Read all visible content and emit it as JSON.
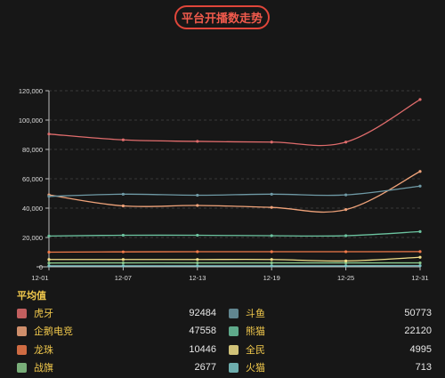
{
  "header": {
    "title": "平台开播数走势"
  },
  "legend_title": "平均值",
  "chart_data": {
    "type": "line",
    "x": [
      "12-01",
      "12-07",
      "12-13",
      "12-19",
      "12-25",
      "12-31"
    ],
    "ylim": [
      0,
      120000
    ],
    "yticks": [
      "0",
      "20,000",
      "40,000",
      "60,000",
      "80,000",
      "100,000",
      "120,000"
    ],
    "grid": true,
    "series": [
      {
        "name": "虎牙",
        "avg": "92484",
        "color": "#e06c6c",
        "values": [
          90500,
          86500,
          85500,
          85000,
          85000,
          114000
        ]
      },
      {
        "name": "斗鱼",
        "avg": "50773",
        "color": "#6f9aa6",
        "values": [
          48000,
          49500,
          48800,
          49500,
          49000,
          55000
        ]
      },
      {
        "name": "企鹅电竞",
        "avg": "47558",
        "color": "#f0a37a",
        "values": [
          49000,
          41500,
          41800,
          40500,
          39000,
          65000
        ]
      },
      {
        "name": "熊猫",
        "avg": "22120",
        "color": "#6cc4a0",
        "values": [
          21000,
          21500,
          21500,
          21200,
          21200,
          24000
        ]
      },
      {
        "name": "龙珠",
        "avg": "10446",
        "color": "#f07a4a",
        "values": [
          10000,
          10200,
          10300,
          10300,
          10300,
          10400
        ]
      },
      {
        "name": "全民",
        "avg": "4995",
        "color": "#f2e08a",
        "values": [
          5000,
          5000,
          5000,
          5000,
          4000,
          6500
        ]
      },
      {
        "name": "战旗",
        "avg": "2677",
        "color": "#8bc98b",
        "values": [
          2600,
          2700,
          2700,
          2700,
          2700,
          2700
        ]
      },
      {
        "name": "火猫",
        "avg": "713",
        "color": "#7ec9c9",
        "values": [
          700,
          700,
          700,
          700,
          700,
          750
        ]
      }
    ]
  },
  "legend_layout": [
    {
      "series": 0,
      "col": 0,
      "row": 0
    },
    {
      "series": 1,
      "col": 1,
      "row": 0
    },
    {
      "series": 2,
      "col": 0,
      "row": 1
    },
    {
      "series": 3,
      "col": 1,
      "row": 1
    },
    {
      "series": 4,
      "col": 0,
      "row": 2
    },
    {
      "series": 5,
      "col": 1,
      "row": 2
    },
    {
      "series": 6,
      "col": 0,
      "row": 3
    },
    {
      "series": 7,
      "col": 1,
      "row": 3
    }
  ]
}
